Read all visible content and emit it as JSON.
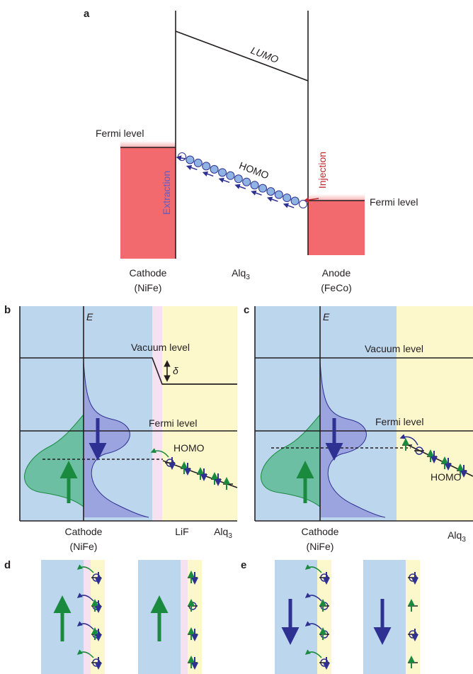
{
  "panel_a": {
    "label": "a",
    "lumo": "LUMO",
    "homo": "HOMO",
    "fermi_left": "Fermi level",
    "fermi_right": "Fermi level",
    "extraction": "Extraction",
    "injection": "Injection",
    "cathode": [
      "Cathode",
      "(NiFe)"
    ],
    "middle": {
      "name": "Alq",
      "sub": "3"
    },
    "anode": [
      "Anode",
      "(FeCo)"
    ]
  },
  "panel_b": {
    "label": "b",
    "axis": "E",
    "vacuum": "Vacuum level",
    "delta": "δ",
    "fermi": "Fermi level",
    "homo": "HOMO",
    "cathode": [
      "Cathode",
      "(NiFe)"
    ],
    "interlayer": "LiF",
    "organic": {
      "name": "Alq",
      "sub": "3"
    }
  },
  "panel_c": {
    "label": "c",
    "axis": "E",
    "vacuum": "Vacuum level",
    "fermi": "Fermi level",
    "homo": "HOMO",
    "cathode": [
      "Cathode",
      "(NiFe)"
    ],
    "organic": {
      "name": "Alq",
      "sub": "3"
    }
  },
  "panel_d": {
    "label": "d"
  },
  "panel_e": {
    "label": "e"
  }
}
